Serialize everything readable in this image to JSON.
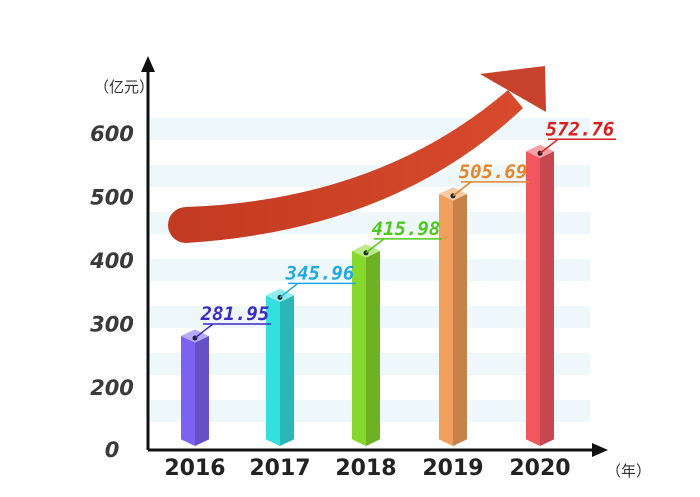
{
  "chart_data": {
    "type": "bar",
    "y_unit_label": "（亿元）",
    "x_unit_label": "（年）",
    "categories": [
      "2016",
      "2017",
      "2018",
      "2019",
      "2020"
    ],
    "values": [
      281.95,
      345.96,
      415.98,
      505.69,
      572.76
    ],
    "value_labels": [
      "281.95",
      "345.96",
      "415.98",
      "505.69",
      "572.76"
    ],
    "yticks": [
      "0",
      "200",
      "300",
      "400",
      "500",
      "600"
    ],
    "ylim": [
      0,
      600
    ],
    "bar_colors": [
      "#7b62f2",
      "#34dfdf",
      "#86d92c",
      "#f0a05a",
      "#f2565e"
    ],
    "label_colors": [
      "#3b2ac2",
      "#20a9df",
      "#4fc81e",
      "#e5862a",
      "#d81e1e"
    ],
    "arrow_color": "#c8412a",
    "trend_arrow": "increasing"
  }
}
